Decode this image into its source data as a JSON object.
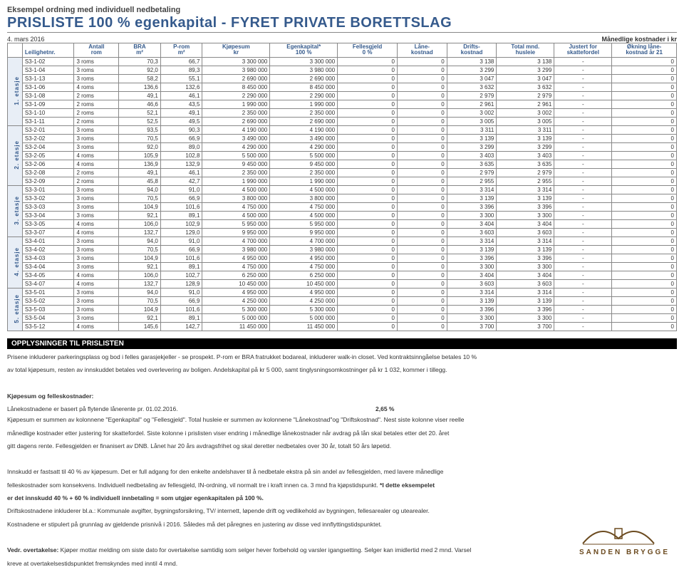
{
  "header": {
    "subtitle": "Eksempel ordning med individuell nedbetaling",
    "title": "PRISLISTE 100 % egenkapital - FYRET PRIVATE BORETTSLAG",
    "date": "4. mars 2016",
    "mnd_label": "Månedlige kostnader i kr"
  },
  "columns": [
    {
      "l1": "",
      "l2": "Leilighetnr."
    },
    {
      "l1": "Antall",
      "l2": "rom"
    },
    {
      "l1": "BRA",
      "l2": "m²"
    },
    {
      "l1": "P-rom",
      "l2": "m²"
    },
    {
      "l1": "Kjøpesum",
      "l2": "kr"
    },
    {
      "l1": "Egenkapital*",
      "l2": "100 %"
    },
    {
      "l1": "Fellesgjeld",
      "l2": "0 %"
    },
    {
      "l1": "Låne-",
      "l2": "kostnad"
    },
    {
      "l1": "Drifts-",
      "l2": "kostnad"
    },
    {
      "l1": "Total mnd.",
      "l2": "husleie"
    },
    {
      "l1": "Justert for",
      "l2": "skattefordel"
    },
    {
      "l1": "Økning låne-",
      "l2": "kostnad år 21"
    }
  ],
  "groups": [
    {
      "label": "1. etasje",
      "rows": [
        [
          "S3-1-02",
          "3 roms",
          "70,3",
          "66,7",
          "3 300 000",
          "3 300 000",
          "0",
          "0",
          "3 138",
          "3 138",
          "-",
          "0"
        ],
        [
          "S3-1-04",
          "3 roms",
          "92,0",
          "89,3",
          "3 980 000",
          "3 980 000",
          "0",
          "0",
          "3 299",
          "3 299",
          "-",
          "0"
        ],
        [
          "S3-1-13",
          "3 roms",
          "58,2",
          "55,1",
          "2 690 000",
          "2 690 000",
          "0",
          "0",
          "3 047",
          "3 047",
          "-",
          "0"
        ],
        [
          "S3-1-06",
          "4 roms",
          "136,6",
          "132,6",
          "8 450 000",
          "8 450 000",
          "0",
          "0",
          "3 632",
          "3 632",
          "-",
          "0"
        ],
        [
          "S3-1-08",
          "2 roms",
          "49,1",
          "46,1",
          "2 290 000",
          "2 290 000",
          "0",
          "0",
          "2 979",
          "2 979",
          "-",
          "0"
        ],
        [
          "S3-1-09",
          "2 roms",
          "46,6",
          "43,5",
          "1 990 000",
          "1 990 000",
          "0",
          "0",
          "2 961",
          "2 961",
          "-",
          "0"
        ],
        [
          "S3-1-10",
          "2 roms",
          "52,1",
          "49,1",
          "2 350 000",
          "2 350 000",
          "0",
          "0",
          "3 002",
          "3 002",
          "-",
          "0"
        ],
        [
          "S3-1-11",
          "2 roms",
          "52,5",
          "49,5",
          "2 690 000",
          "2 690 000",
          "0",
          "0",
          "3 005",
          "3 005",
          "-",
          "0"
        ]
      ]
    },
    {
      "label": "2. etasje",
      "rows": [
        [
          "S3-2-01",
          "3 roms",
          "93,5",
          "90,3",
          "4 190 000",
          "4 190 000",
          "0",
          "0",
          "3 311",
          "3 311",
          "-",
          "0"
        ],
        [
          "S3-2-02",
          "3 roms",
          "70,5",
          "66,9",
          "3 490 000",
          "3 490 000",
          "0",
          "0",
          "3 139",
          "3 139",
          "-",
          "0"
        ],
        [
          "S3-2-04",
          "3 roms",
          "92,0",
          "89,0",
          "4 290 000",
          "4 290 000",
          "0",
          "0",
          "3 299",
          "3 299",
          "-",
          "0"
        ],
        [
          "S3-2-05",
          "4 roms",
          "105,9",
          "102,8",
          "5 500 000",
          "5 500 000",
          "0",
          "0",
          "3 403",
          "3 403",
          "-",
          "0"
        ],
        [
          "S3-2-06",
          "4 roms",
          "136,9",
          "132,9",
          "9 450 000",
          "9 450 000",
          "0",
          "0",
          "3 635",
          "3 635",
          "-",
          "0"
        ],
        [
          "S3-2-08",
          "2 roms",
          "49,1",
          "46,1",
          "2 350 000",
          "2 350 000",
          "0",
          "0",
          "2 979",
          "2 979",
          "-",
          "0"
        ],
        [
          "S3-2-09",
          "2 roms",
          "45,8",
          "42,7",
          "1 990 000",
          "1 990 000",
          "0",
          "0",
          "2 955",
          "2 955",
          "-",
          "0"
        ]
      ]
    },
    {
      "label": "3. etasje",
      "rows": [
        [
          "S3-3-01",
          "3 roms",
          "94,0",
          "91,0",
          "4 500 000",
          "4 500 000",
          "0",
          "0",
          "3 314",
          "3 314",
          "-",
          "0"
        ],
        [
          "S3-3-02",
          "3 roms",
          "70,5",
          "66,9",
          "3 800 000",
          "3 800 000",
          "0",
          "0",
          "3 139",
          "3 139",
          "-",
          "0"
        ],
        [
          "S3-3-03",
          "3 roms",
          "104,9",
          "101,6",
          "4 750 000",
          "4 750 000",
          "0",
          "0",
          "3 396",
          "3 396",
          "-",
          "0"
        ],
        [
          "S3-3-04",
          "3 roms",
          "92,1",
          "89,1",
          "4 500 000",
          "4 500 000",
          "0",
          "0",
          "3 300",
          "3 300",
          "-",
          "0"
        ],
        [
          "S3-3-05",
          "4 roms",
          "106,0",
          "102,9",
          "5 950 000",
          "5 950 000",
          "0",
          "0",
          "3 404",
          "3 404",
          "-",
          "0"
        ],
        [
          "S3-3-07",
          "4 roms",
          "132,7",
          "129,0",
          "9 950 000",
          "9 950 000",
          "0",
          "0",
          "3 603",
          "3 603",
          "-",
          "0"
        ]
      ]
    },
    {
      "label": "4. etasje",
      "rows": [
        [
          "S3-4-01",
          "3 roms",
          "94,0",
          "91,0",
          "4 700 000",
          "4 700 000",
          "0",
          "0",
          "3 314",
          "3 314",
          "-",
          "0"
        ],
        [
          "S3-4-02",
          "3 roms",
          "70,5",
          "66,9",
          "3 980 000",
          "3 980 000",
          "0",
          "0",
          "3 139",
          "3 139",
          "-",
          "0"
        ],
        [
          "S3-4-03",
          "3 roms",
          "104,9",
          "101,6",
          "4 950 000",
          "4 950 000",
          "0",
          "0",
          "3 396",
          "3 396",
          "-",
          "0"
        ],
        [
          "S3-4-04",
          "3 roms",
          "92,1",
          "89,1",
          "4 750 000",
          "4 750 000",
          "0",
          "0",
          "3 300",
          "3 300",
          "-",
          "0"
        ],
        [
          "S3-4-05",
          "4 roms",
          "106,0",
          "102,7",
          "6 250 000",
          "6 250 000",
          "0",
          "0",
          "3 404",
          "3 404",
          "-",
          "0"
        ],
        [
          "S3-4-07",
          "4 roms",
          "132,7",
          "128,9",
          "10 450 000",
          "10 450 000",
          "0",
          "0",
          "3 603",
          "3 603",
          "-",
          "0"
        ]
      ]
    },
    {
      "label": "5. etasje",
      "rows": [
        [
          "S3-5-01",
          "3 roms",
          "94,0",
          "91,0",
          "4 950 000",
          "4 950 000",
          "0",
          "0",
          "3 314",
          "3 314",
          "-",
          "0"
        ],
        [
          "S3-5-02",
          "3 roms",
          "70,5",
          "66,9",
          "4 250 000",
          "4 250 000",
          "0",
          "0",
          "3 139",
          "3 139",
          "-",
          "0"
        ],
        [
          "S3-5-03",
          "3 roms",
          "104,9",
          "101,6",
          "5 300 000",
          "5 300 000",
          "0",
          "0",
          "3 396",
          "3 396",
          "-",
          "0"
        ],
        [
          "S3-5-04",
          "3 roms",
          "92,1",
          "89,1",
          "5 000 000",
          "5 000 000",
          "0",
          "0",
          "3 300",
          "3 300",
          "-",
          "0"
        ],
        [
          "S3-5-12",
          "4 roms",
          "145,6",
          "142,7",
          "11 450 000",
          "11 450 000",
          "0",
          "0",
          "3 700",
          "3 700",
          "-",
          "0"
        ]
      ]
    }
  ],
  "opplysninger_title": "OPPLYSNINGER TIL PRISLISTEN",
  "body": {
    "p1": "Prisene inkluderer parkeringsplass og bod i felles garasjekjeller - se prospekt. P-rom er BRA fratrukket bodareal, inkluderer walk-in closet. Ved kontraktsinngåelse betales 10 %",
    "p2": "av total kjøpesum, resten av innskuddet betales ved overlevering av boligen. Andelskapital på kr 5 000, samt tinglysningsomkostninger på kr 1 032, kommer i tillegg.",
    "h1": "Kjøpesum og felleskostnader:",
    "p3_left": "Lånekostnadene er basert på flytende lånerente pr. 01.02.2016.",
    "p3_rate": "2,65 %",
    "p4": "Kjøpesum er summen av kolonnene \"Egenkapital\" og \"Fellesgjeld\". Total husleie er summen av kolonnene \"Lånekostnad\"og \"Driftskostnad\". Nest siste kolonne viser reelle",
    "p5": "månedlige kostnader etter justering for skattefordel. Siste kolonne i prislisten viser endring i månedlige lånekostnader når avdrag på lån skal betales etter det 20. året",
    "p6": "gitt dagens rente. Fellesgjelden er finanisert av DNB. Lånet har 20 års avdragsfrihet og skal deretter nedbetales over 30 år, totalt 50 års løpetid.",
    "p7": "Innskudd er fastsatt til 40 % av kjøpesum. Det er full adgang for den enkelte andelshaver til å nedbetale ekstra på sin andel av fellesgjelden, med lavere månedlige",
    "p8a": "felleskostnader som konsekvens. Individuell nedbetaling av fellesgjeld, IN-ordning, vil normalt tre i kraft innen ca. 3 mnd fra kjøpstidspunkt. ",
    "p8b": "*I dette eksempelet",
    "p9": "er det innskudd 40 % + 60 % individuell innbetaling = som utgjør egenkapitalen på 100 %.",
    "p10": "Driftskostnadene inkluderer bl.a.: Kommunale avgifter, bygningsforsikring, TV/ internett, løpende drift og vedlikehold av bygningen, fellesarealer og utearealer.",
    "p11": "Kostnadene er stipulert på grunnlag av gjeldende prisnivå i 2016. Således må det påregnes en justering av disse ved innflyttingstidspunktet.",
    "p12a": "Vedr. overtakelse:",
    "p12b": " Kjøper mottar melding om siste dato for overtakelse samtidig som selger hever forbehold og varsler igangsetting. Selger kan imidlertid med 2 mnd. Varsel",
    "p13": "kreve at overtakelsestidspunktet fremskyndes med inntil 4 mnd."
  },
  "logo_text": "SANDEN BRYGGE"
}
